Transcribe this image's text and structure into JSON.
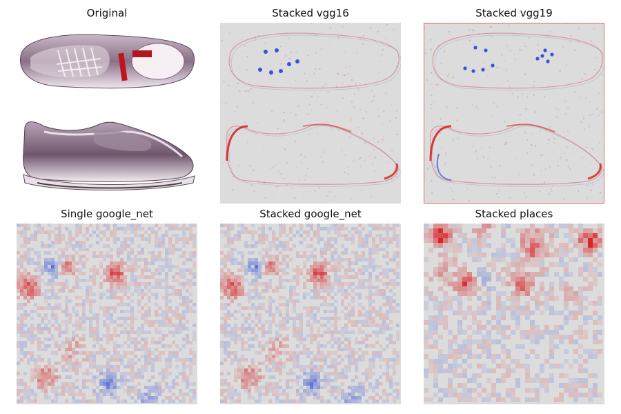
{
  "panels": [
    {
      "title": "Original",
      "kind": "photo"
    },
    {
      "title": "Stacked vgg16",
      "kind": "smooth",
      "variant": "vgg16"
    },
    {
      "title": "Stacked vgg19",
      "kind": "smooth",
      "variant": "vgg19"
    },
    {
      "title": "Single google_net",
      "kind": "pixel",
      "variant": "google_net_single"
    },
    {
      "title": "Stacked google_net",
      "kind": "pixel",
      "variant": "google_net_stacked"
    },
    {
      "title": "Stacked places",
      "kind": "pixel",
      "variant": "places"
    }
  ],
  "colors": {
    "positive": "#d7191c",
    "negative": "#1a3cd8",
    "neutral": "#dcdcdc"
  }
}
